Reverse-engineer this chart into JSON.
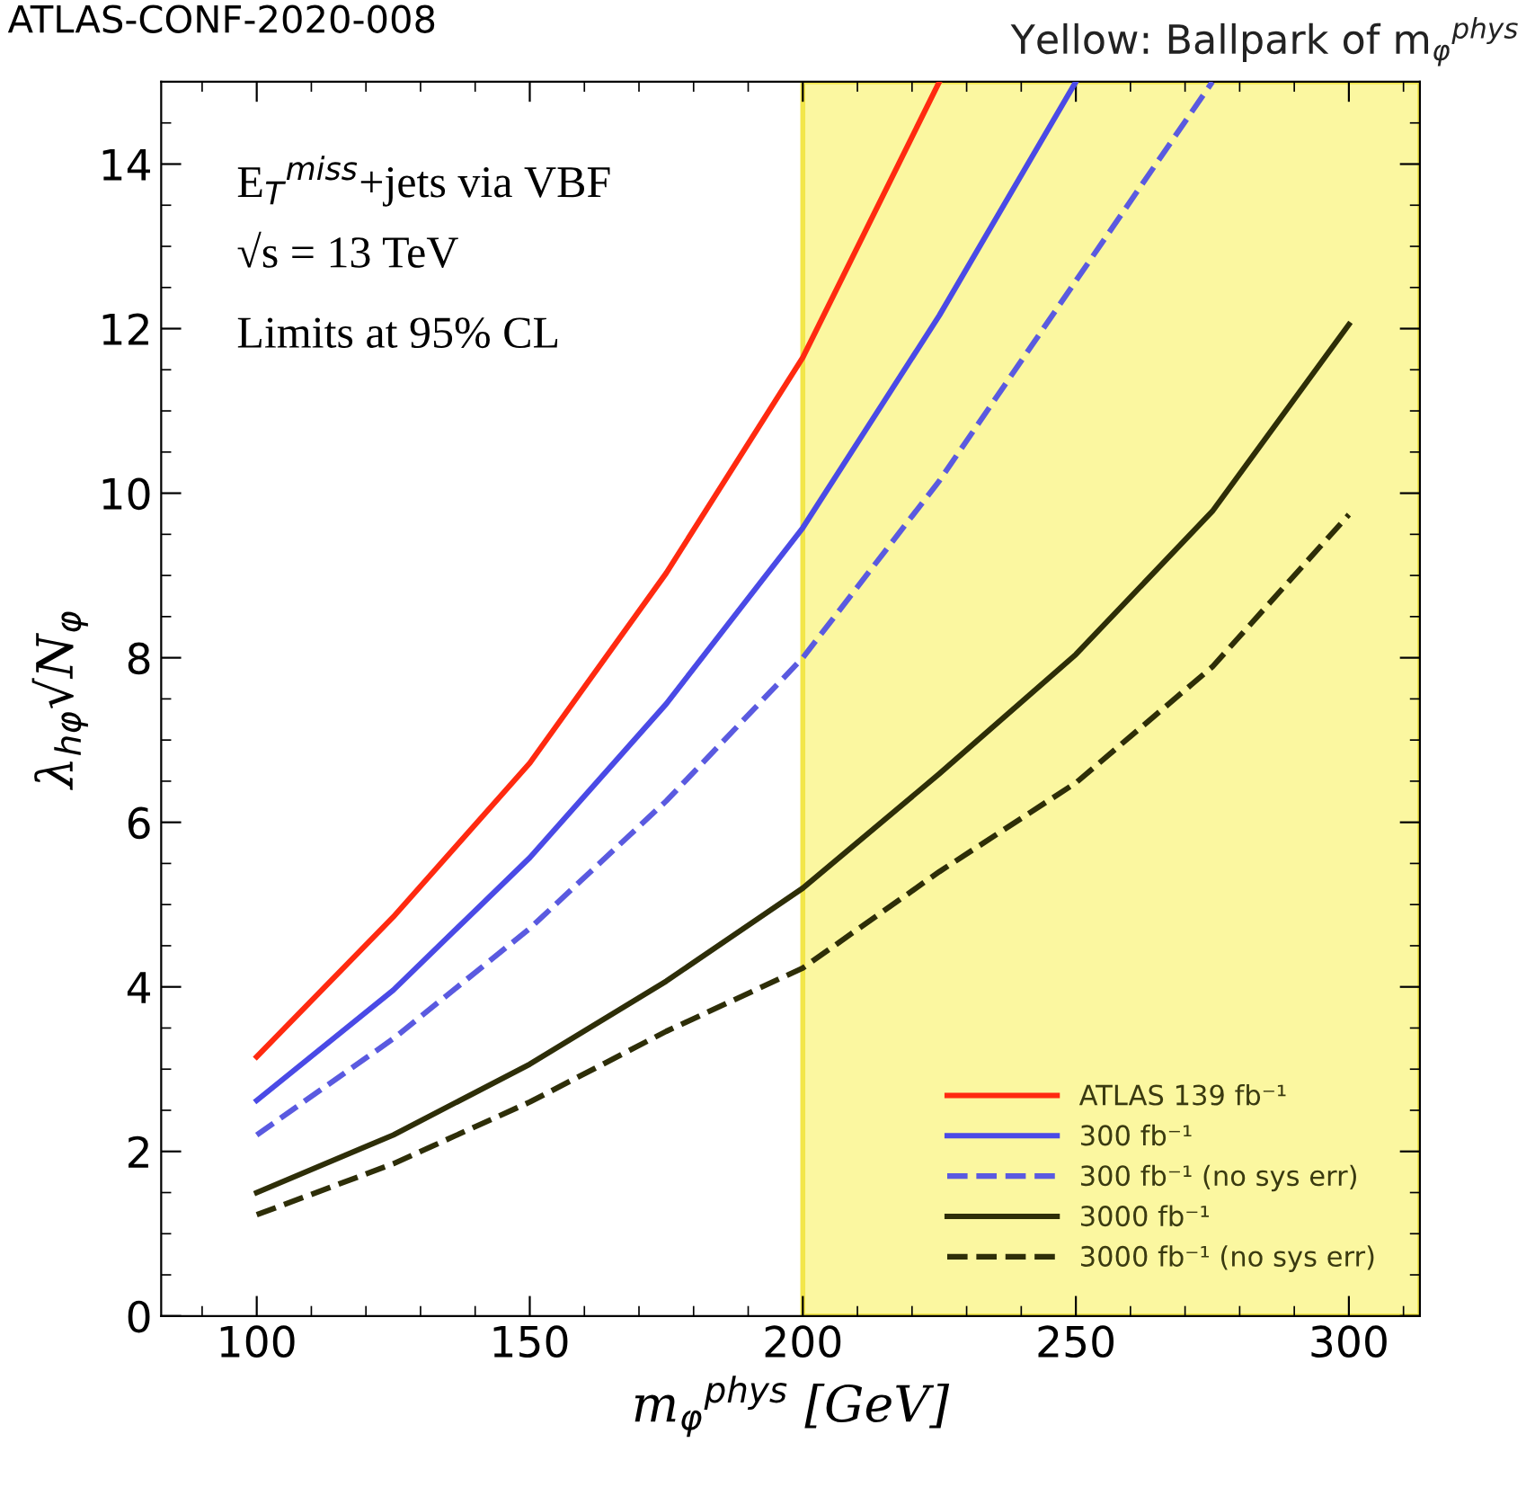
{
  "chart_data": {
    "type": "line",
    "title": "ATLAS-CONF-2020-008",
    "xlabel": "m$_{φ}$$^{phys}$ [GeV]",
    "ylabel": "λ$_{hφ}$√N$_{φ}$",
    "x": [
      100,
      125,
      150,
      175,
      200,
      225,
      250,
      275,
      300
    ],
    "series": [
      {
        "name": "ATLAS 139 fb⁻¹",
        "color": "#ff2a10",
        "line_style": "solid",
        "values": [
          3.15,
          4.85,
          6.72,
          9.03,
          11.65,
          15.0,
          null,
          null,
          null
        ]
      },
      {
        "name": "300 fb⁻¹",
        "color": "#4a4ae6",
        "line_style": "solid",
        "values": [
          2.62,
          3.96,
          5.57,
          7.44,
          9.58,
          12.16,
          15.0,
          null,
          null
        ]
      },
      {
        "name": "300 fb⁻¹ (no sys err)",
        "color": "#5a5ae0",
        "line_style": "dashed",
        "values": [
          2.2,
          3.37,
          4.71,
          6.26,
          8.0,
          10.15,
          12.58,
          15.0,
          null
        ]
      },
      {
        "name": "3000 fb⁻¹",
        "color": "#2e2e08",
        "line_style": "solid",
        "values": [
          1.5,
          2.2,
          3.06,
          4.07,
          5.2,
          6.59,
          8.04,
          9.78,
          12.05
        ]
      },
      {
        "name": "3000 fb⁻¹ (no sys err)",
        "color": "#2e2e08",
        "line_style": "dashed",
        "values": [
          1.23,
          1.85,
          2.6,
          3.46,
          4.23,
          5.4,
          6.48,
          7.89,
          9.74
        ]
      }
    ],
    "xlim": [
      82.5,
      313
    ],
    "ylim": [
      0,
      15
    ],
    "xticks": [
      100,
      150,
      200,
      250,
      300
    ],
    "yticks": [
      0,
      2,
      4,
      6,
      8,
      10,
      12,
      14
    ],
    "bands": [
      {
        "axis": "x",
        "from": 200,
        "to": 313,
        "label": "Yellow: Ballpark of m$_{φ}$$^{phys}$",
        "color": "#fbf7a0"
      }
    ],
    "annotations": [
      "E$_{T}$$^{miss}$+jets via VBF",
      "√s = 13 TeV",
      "Limits at 95% CL"
    ],
    "legend": "bottom right",
    "grid": false,
    "marker": "none"
  }
}
